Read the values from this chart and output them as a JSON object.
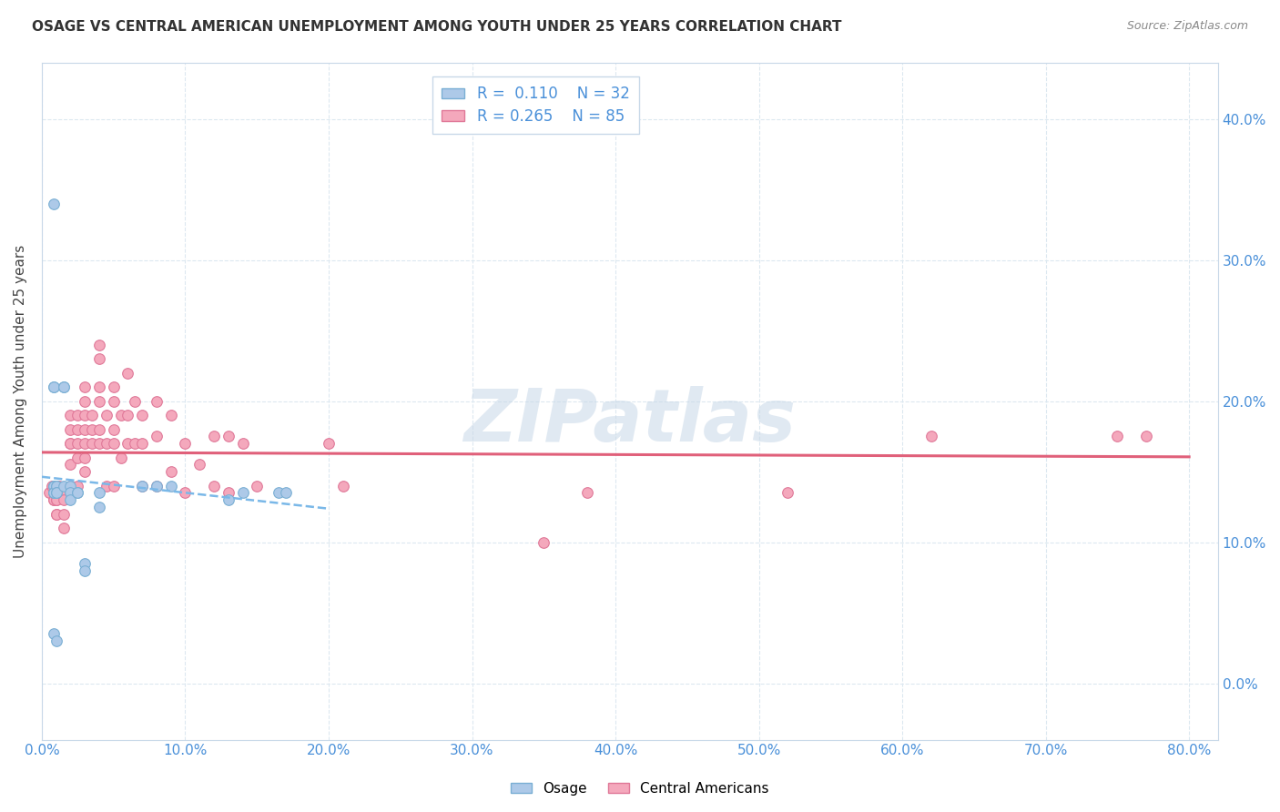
{
  "title": "OSAGE VS CENTRAL AMERICAN UNEMPLOYMENT AMONG YOUTH UNDER 25 YEARS CORRELATION CHART",
  "source": "Source: ZipAtlas.com",
  "ylabel": "Unemployment Among Youth under 25 years",
  "osage_color": "#adc9e8",
  "ca_color": "#f4a8bc",
  "osage_edge": "#7aafd4",
  "ca_edge": "#e07898",
  "trend_osage_color": "#7ab8e8",
  "trend_ca_color": "#e0607a",
  "R_osage": 0.11,
  "N_osage": 32,
  "R_ca": 0.265,
  "N_ca": 85,
  "xlim": [
    0.0,
    0.82
  ],
  "ylim": [
    -0.04,
    0.44
  ],
  "background_color": "#ffffff",
  "grid_color": "#dce8f0",
  "watermark": "ZIPatlas",
  "marker_size": 70,
  "osage_x": [
    0.008,
    0.008,
    0.008,
    0.008,
    0.008,
    0.008,
    0.008,
    0.01,
    0.01,
    0.01,
    0.01,
    0.015,
    0.015,
    0.015,
    0.02,
    0.02,
    0.02,
    0.025,
    0.025,
    0.03,
    0.03,
    0.04,
    0.04,
    0.07,
    0.08,
    0.09,
    0.13,
    0.14,
    0.165,
    0.17,
    0.008,
    0.01
  ],
  "osage_y": [
    0.34,
    0.21,
    0.21,
    0.14,
    0.14,
    0.135,
    0.135,
    0.14,
    0.14,
    0.135,
    0.135,
    0.21,
    0.21,
    0.14,
    0.14,
    0.135,
    0.13,
    0.135,
    0.135,
    0.085,
    0.08,
    0.135,
    0.125,
    0.14,
    0.14,
    0.14,
    0.13,
    0.135,
    0.135,
    0.135,
    0.035,
    0.03
  ],
  "ca_x": [
    0.005,
    0.007,
    0.008,
    0.008,
    0.008,
    0.008,
    0.008,
    0.01,
    0.01,
    0.01,
    0.01,
    0.01,
    0.012,
    0.012,
    0.015,
    0.015,
    0.015,
    0.015,
    0.02,
    0.02,
    0.02,
    0.02,
    0.02,
    0.02,
    0.025,
    0.025,
    0.025,
    0.025,
    0.025,
    0.03,
    0.03,
    0.03,
    0.03,
    0.03,
    0.03,
    0.03,
    0.035,
    0.035,
    0.035,
    0.04,
    0.04,
    0.04,
    0.04,
    0.04,
    0.04,
    0.045,
    0.045,
    0.045,
    0.05,
    0.05,
    0.05,
    0.05,
    0.05,
    0.055,
    0.055,
    0.06,
    0.06,
    0.06,
    0.065,
    0.065,
    0.07,
    0.07,
    0.07,
    0.08,
    0.08,
    0.08,
    0.09,
    0.09,
    0.1,
    0.1,
    0.11,
    0.12,
    0.12,
    0.13,
    0.13,
    0.14,
    0.15,
    0.2,
    0.21,
    0.35,
    0.38,
    0.52,
    0.62,
    0.75,
    0.77
  ],
  "ca_y": [
    0.135,
    0.14,
    0.14,
    0.135,
    0.135,
    0.13,
    0.13,
    0.135,
    0.13,
    0.13,
    0.12,
    0.12,
    0.14,
    0.135,
    0.135,
    0.13,
    0.12,
    0.11,
    0.19,
    0.18,
    0.17,
    0.17,
    0.155,
    0.14,
    0.19,
    0.18,
    0.17,
    0.16,
    0.14,
    0.21,
    0.2,
    0.19,
    0.18,
    0.17,
    0.16,
    0.15,
    0.19,
    0.18,
    0.17,
    0.24,
    0.23,
    0.21,
    0.2,
    0.18,
    0.17,
    0.19,
    0.17,
    0.14,
    0.21,
    0.2,
    0.18,
    0.17,
    0.14,
    0.19,
    0.16,
    0.22,
    0.19,
    0.17,
    0.2,
    0.17,
    0.19,
    0.17,
    0.14,
    0.2,
    0.175,
    0.14,
    0.19,
    0.15,
    0.17,
    0.135,
    0.155,
    0.175,
    0.14,
    0.175,
    0.135,
    0.17,
    0.14,
    0.17,
    0.14,
    0.1,
    0.135,
    0.135,
    0.175,
    0.175,
    0.175
  ]
}
